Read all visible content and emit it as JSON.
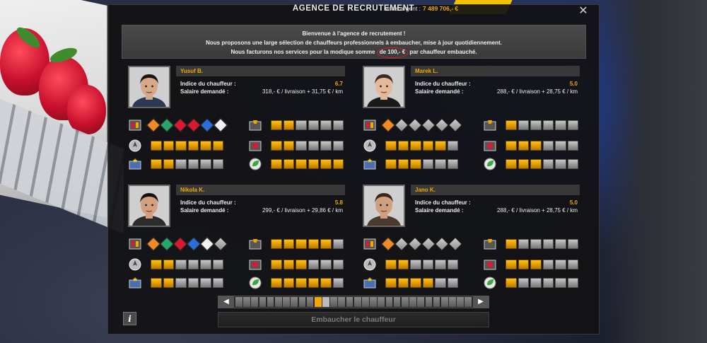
{
  "window": {
    "title": "AGENCE DE RECRUTEMENT",
    "money_label": "Votre argent :",
    "money_value": "7 489 706,- €",
    "close_icon": "close-icon"
  },
  "intro": {
    "line1": "Bienvenue à l'agence de recrutement !",
    "line2": "Nous proposons une large sélection de chauffeurs professionnels à embaucher, mise à jour quotidiennement.",
    "line3_pre": "Nous facturons nos services pour la modique somme ",
    "line3_price": "de 100,- €",
    "line3_post": " par chauffeur embauché."
  },
  "labels": {
    "index": "Indice du chauffeur :",
    "salary": "Salaire demandé :"
  },
  "drivers": [
    {
      "name": "Yusuf B.",
      "index": "6.7",
      "salary": "318,- € / livraison + 31,75 € / km",
      "skin": "#d7a888",
      "hair": "#1a1410",
      "shirt": "#2a3a55",
      "adr": [
        "explosive",
        "gas",
        "flammable",
        "corrosive-red",
        "oxidizer",
        "toxic"
      ],
      "adr_grey": 0,
      "skills": {
        "long_distance": 6,
        "high_value": 2,
        "fragile": 2,
        "just_in_time": 2,
        "eco_driving": 6
      }
    },
    {
      "name": "Marek L.",
      "index": "5.0",
      "salary": "288,- € / livraison + 28,75 € / km",
      "skin": "#e5b89a",
      "hair": "#3a2a20",
      "shirt": "#1a1a1a",
      "adr": [
        "explosive"
      ],
      "adr_grey": 5,
      "skills": {
        "long_distance": 5,
        "high_value": 3,
        "fragile": 1,
        "just_in_time": 3,
        "eco_driving": 3
      }
    },
    {
      "name": "Nikola K.",
      "index": "5.8",
      "salary": "299,- € / livraison + 29,86 € / km",
      "skin": "#d3a07f",
      "hair": "#151010",
      "shirt": "#2b2b2b",
      "adr": [
        "explosive",
        "gas",
        "flammable",
        "oxidizer",
        "toxic"
      ],
      "adr_grey": 1,
      "skills": {
        "long_distance": 2,
        "high_value": 2,
        "fragile": 5,
        "just_in_time": 3,
        "eco_driving": 5
      }
    },
    {
      "name": "Jano K.",
      "index": "5.0",
      "salary": "288,- € / livraison + 28,75 € / km",
      "skin": "#cf9f80",
      "hair": "#3b2618",
      "shirt": "#4a3b2e",
      "adr": [
        "explosive"
      ],
      "adr_grey": 5,
      "skills": {
        "long_distance": 2,
        "high_value": 4,
        "fragile": 1,
        "just_in_time": 3,
        "eco_driving": 1
      }
    }
  ],
  "pager": {
    "pages": 30,
    "selected": 10
  },
  "hire_button": "Embaucher le chauffeur",
  "info_button": "i",
  "colors": {
    "accent": "#f0a800",
    "danger_circle": "#d21e1e"
  }
}
